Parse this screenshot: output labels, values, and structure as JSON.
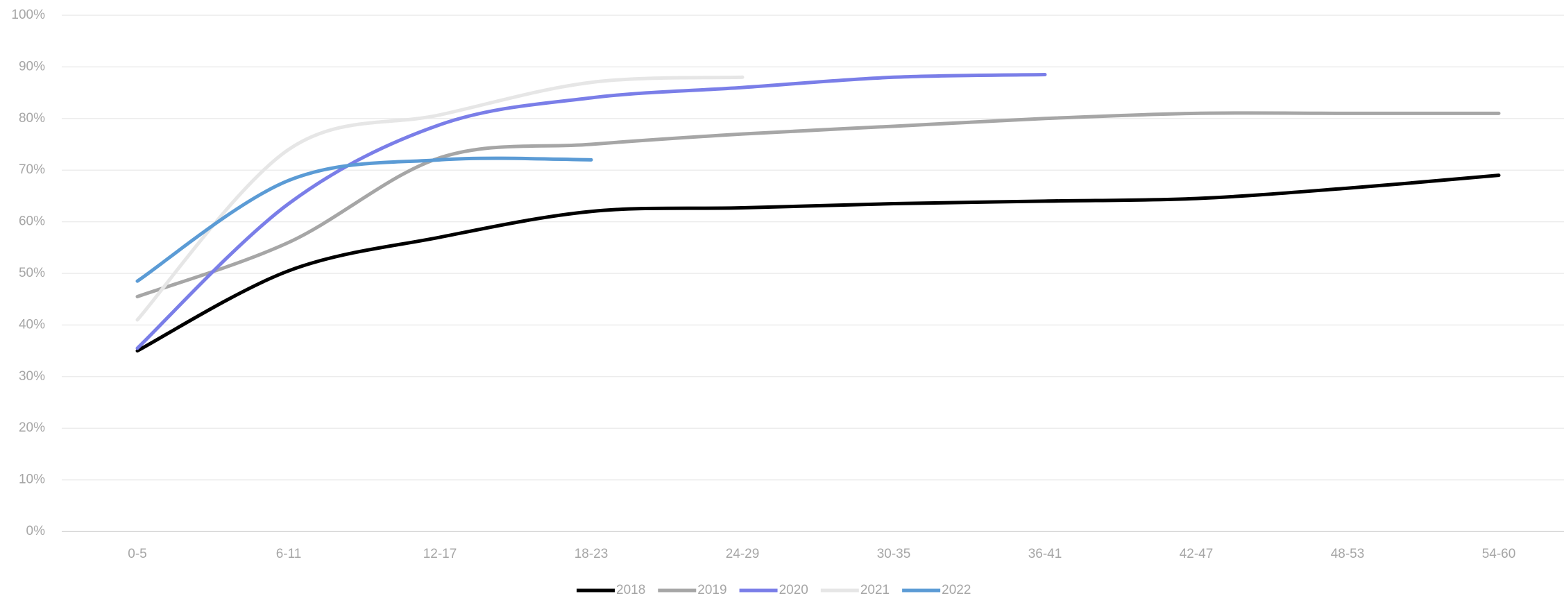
{
  "chart_data": {
    "type": "line",
    "categories": [
      "0-5",
      "6-11",
      "12-17",
      "18-23",
      "24-29",
      "30-35",
      "36-41",
      "42-47",
      "48-53",
      "54-60"
    ],
    "series": [
      {
        "name": "2018",
        "color": "#000000",
        "values": [
          35,
          50.5,
          57,
          62,
          62.7,
          63.5,
          64,
          64.5,
          66.5,
          69
        ]
      },
      {
        "name": "2019",
        "color": "#a6a6a6",
        "values": [
          45.5,
          56,
          72.4,
          75,
          77,
          78.5,
          80,
          81,
          81,
          81
        ]
      },
      {
        "name": "2020",
        "color": "#7a7ee8",
        "values": [
          35.5,
          63.5,
          78.8,
          84,
          86,
          88,
          88.5,
          null,
          null,
          null
        ]
      },
      {
        "name": "2021",
        "color": "#e6e6e6",
        "values": [
          41,
          74,
          80.7,
          87,
          88,
          null,
          null,
          null,
          null,
          null
        ]
      },
      {
        "name": "2022",
        "color": "#5b9bd5",
        "values": [
          48.5,
          68,
          72,
          72,
          null,
          null,
          null,
          null,
          null,
          null
        ]
      }
    ],
    "ylim": [
      0,
      100
    ],
    "yticks": [
      {
        "value": 0,
        "label": "0%"
      },
      {
        "value": 10,
        "label": "10%"
      },
      {
        "value": 20,
        "label": "20%"
      },
      {
        "value": 30,
        "label": "30%"
      },
      {
        "value": 40,
        "label": "40%"
      },
      {
        "value": 50,
        "label": "50%"
      },
      {
        "value": 60,
        "label": "60%"
      },
      {
        "value": 70,
        "label": "70%"
      },
      {
        "value": 80,
        "label": "80%"
      },
      {
        "value": 90,
        "label": "90%"
      },
      {
        "value": 100,
        "label": "100%"
      }
    ],
    "grid": true,
    "legend": "bottom"
  }
}
